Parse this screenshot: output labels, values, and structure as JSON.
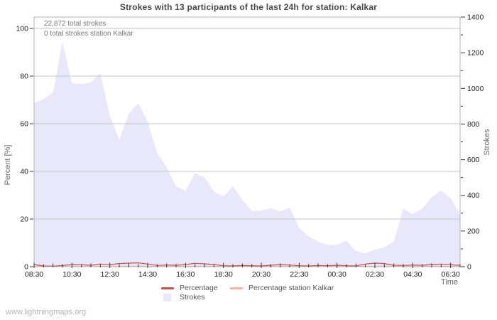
{
  "title": "Strokes with 13 participants of the last 24h for station: Kalkar",
  "annotations": {
    "total_strokes": "22,872 total strokes",
    "station_total_strokes": "0 total strokes station Kalkar"
  },
  "watermark": "www.lightningmaps.org",
  "legend": {
    "percentage_label": "Percentage",
    "station_label": "Percentage station Kalkar",
    "strokes_label": "Strokes"
  },
  "colors": {
    "area_fill": "#e9e8fa",
    "percentage_line": "#c0504d",
    "station_line": "#f5b2ad",
    "gridline": "#c6c6c6",
    "frame": "#b0b0b0",
    "tick": "#333333",
    "tick_label": "#222222",
    "axis_title": "#666666",
    "title_text": "#474747",
    "annotation_text": "#787878",
    "watermark_text": "#b4b4b4"
  },
  "chart_data": {
    "type": "area",
    "title": "Strokes with 13 participants of the last 24h for station: Kalkar",
    "xlabel": "Time",
    "x": [
      "08:30",
      "09:00",
      "09:30",
      "10:00",
      "10:30",
      "11:00",
      "11:30",
      "12:00",
      "12:30",
      "13:00",
      "13:30",
      "14:00",
      "14:30",
      "15:00",
      "15:30",
      "16:00",
      "16:30",
      "17:00",
      "17:30",
      "18:00",
      "18:30",
      "19:00",
      "19:30",
      "20:00",
      "20:30",
      "21:00",
      "21:30",
      "22:00",
      "22:30",
      "23:00",
      "23:30",
      "00:00",
      "00:30",
      "01:00",
      "01:30",
      "02:00",
      "02:30",
      "03:00",
      "03:30",
      "04:00",
      "04:30",
      "05:00",
      "05:30",
      "06:00",
      "06:30",
      "07:00"
    ],
    "x_label_every": 4,
    "x_tick_labels": [
      "08:30",
      "10:30",
      "12:30",
      "14:30",
      "16:30",
      "18:30",
      "20:30",
      "22:30",
      "00:30",
      "02:30",
      "04:30",
      "06:30"
    ],
    "y_left": {
      "label": "Percent  [%]",
      "ticks": [
        0,
        20,
        40,
        60,
        80,
        100
      ],
      "lim": [
        0,
        100
      ],
      "units": "%"
    },
    "y_right": {
      "label": "Strokes",
      "lim": [
        0,
        1400
      ],
      "label_step": 200,
      "minor_step": 100
    },
    "grid": true,
    "legend_position": "bottom",
    "series": [
      {
        "name": "Strokes",
        "type": "area",
        "axis": "right",
        "values": [
          917,
          941,
          977,
          1260,
          1029,
          1025,
          1033,
          1085,
          846,
          710,
          858,
          917,
          814,
          638,
          558,
          451,
          425,
          525,
          500,
          420,
          395,
          451,
          375,
          311,
          315,
          327,
          310,
          331,
          219,
          170,
          140,
          122,
          122,
          145,
          88,
          75,
          96,
          108,
          140,
          325,
          295,
          325,
          390,
          425,
          385,
          290
        ]
      },
      {
        "name": "Percentage",
        "type": "line",
        "axis": "left",
        "values": [
          0.9,
          0.3,
          0.2,
          0.5,
          0.9,
          0.8,
          0.6,
          1.1,
          0.8,
          1.3,
          1.5,
          1.6,
          1.1,
          0.5,
          0.7,
          0.6,
          0.9,
          1.4,
          1.2,
          0.9,
          0.4,
          0.3,
          0.5,
          0.4,
          0.3,
          0.6,
          0.9,
          0.7,
          0.4,
          0.3,
          0.5,
          0.4,
          0.6,
          0.4,
          0.3,
          1.1,
          1.5,
          1.3,
          0.6,
          0.5,
          0.7,
          0.6,
          0.9,
          1.1,
          0.8,
          0.6
        ]
      },
      {
        "name": "Percentage station Kalkar",
        "type": "line",
        "axis": "left",
        "constant_value": 0
      }
    ]
  }
}
